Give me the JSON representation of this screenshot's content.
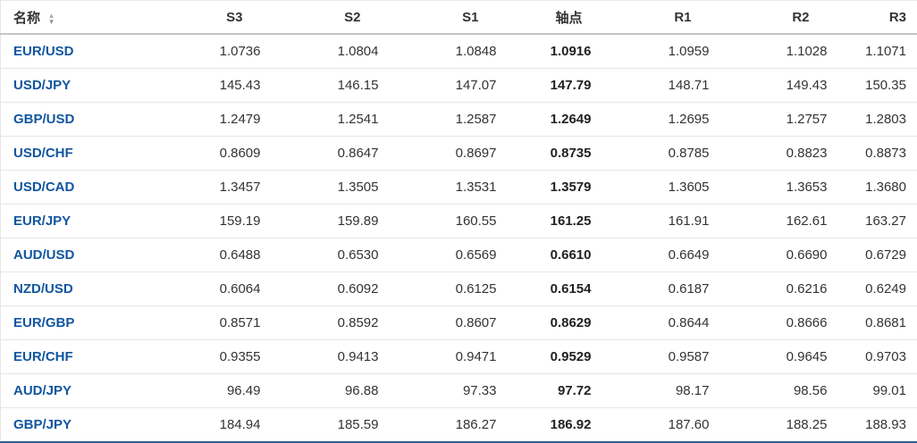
{
  "colors": {
    "link_blue": "#1256a0",
    "value_text": "#333333",
    "row_border": "#e6e6e6",
    "header_border": "#c5c5c5",
    "table_bottom_border": "#30619b"
  },
  "icons": {
    "sort_up": "▴",
    "sort_down": "▾"
  },
  "table": {
    "columns": [
      {
        "key": "name",
        "label": "名称"
      },
      {
        "key": "s3",
        "label": "S3"
      },
      {
        "key": "s2",
        "label": "S2"
      },
      {
        "key": "s1",
        "label": "S1"
      },
      {
        "key": "pivot",
        "label": "轴点"
      },
      {
        "key": "r1",
        "label": "R1"
      },
      {
        "key": "r2",
        "label": "R2"
      },
      {
        "key": "r3",
        "label": "R3"
      }
    ],
    "rows": [
      {
        "name": "EUR/USD",
        "s3": "1.0736",
        "s2": "1.0804",
        "s1": "1.0848",
        "pivot": "1.0916",
        "r1": "1.0959",
        "r2": "1.1028",
        "r3": "1.1071"
      },
      {
        "name": "USD/JPY",
        "s3": "145.43",
        "s2": "146.15",
        "s1": "147.07",
        "pivot": "147.79",
        "r1": "148.71",
        "r2": "149.43",
        "r3": "150.35"
      },
      {
        "name": "GBP/USD",
        "s3": "1.2479",
        "s2": "1.2541",
        "s1": "1.2587",
        "pivot": "1.2649",
        "r1": "1.2695",
        "r2": "1.2757",
        "r3": "1.2803"
      },
      {
        "name": "USD/CHF",
        "s3": "0.8609",
        "s2": "0.8647",
        "s1": "0.8697",
        "pivot": "0.8735",
        "r1": "0.8785",
        "r2": "0.8823",
        "r3": "0.8873"
      },
      {
        "name": "USD/CAD",
        "s3": "1.3457",
        "s2": "1.3505",
        "s1": "1.3531",
        "pivot": "1.3579",
        "r1": "1.3605",
        "r2": "1.3653",
        "r3": "1.3680"
      },
      {
        "name": "EUR/JPY",
        "s3": "159.19",
        "s2": "159.89",
        "s1": "160.55",
        "pivot": "161.25",
        "r1": "161.91",
        "r2": "162.61",
        "r3": "163.27"
      },
      {
        "name": "AUD/USD",
        "s3": "0.6488",
        "s2": "0.6530",
        "s1": "0.6569",
        "pivot": "0.6610",
        "r1": "0.6649",
        "r2": "0.6690",
        "r3": "0.6729"
      },
      {
        "name": "NZD/USD",
        "s3": "0.6064",
        "s2": "0.6092",
        "s1": "0.6125",
        "pivot": "0.6154",
        "r1": "0.6187",
        "r2": "0.6216",
        "r3": "0.6249"
      },
      {
        "name": "EUR/GBP",
        "s3": "0.8571",
        "s2": "0.8592",
        "s1": "0.8607",
        "pivot": "0.8629",
        "r1": "0.8644",
        "r2": "0.8666",
        "r3": "0.8681"
      },
      {
        "name": "EUR/CHF",
        "s3": "0.9355",
        "s2": "0.9413",
        "s1": "0.9471",
        "pivot": "0.9529",
        "r1": "0.9587",
        "r2": "0.9645",
        "r3": "0.9703"
      },
      {
        "name": "AUD/JPY",
        "s3": "96.49",
        "s2": "96.88",
        "s1": "97.33",
        "pivot": "97.72",
        "r1": "98.17",
        "r2": "98.56",
        "r3": "99.01"
      },
      {
        "name": "GBP/JPY",
        "s3": "184.94",
        "s2": "185.59",
        "s1": "186.27",
        "pivot": "186.92",
        "r1": "187.60",
        "r2": "188.25",
        "r3": "188.93"
      }
    ]
  }
}
